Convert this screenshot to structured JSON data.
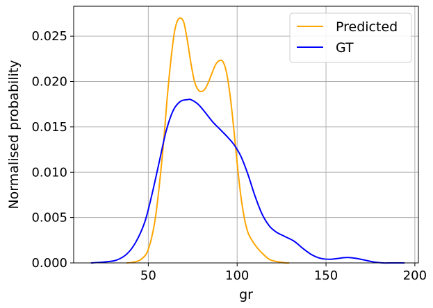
{
  "chart_data": {
    "type": "line",
    "xlabel": "gr",
    "ylabel": "Normalised probability",
    "xlim": [
      8,
      202
    ],
    "ylim": [
      0,
      0.0283
    ],
    "xticks": [
      50,
      100,
      150,
      200
    ],
    "xtick_labels": [
      "50",
      "100",
      "150",
      "200"
    ],
    "yticks": [
      0,
      0.005,
      0.01,
      0.015,
      0.02,
      0.025
    ],
    "ytick_labels": [
      "0.000",
      "0.005",
      "0.010",
      "0.015",
      "0.020",
      "0.025"
    ],
    "grid": true,
    "legend_position": "top-right",
    "series": [
      {
        "name": "Predicted",
        "color": "#FFA500",
        "x": [
          38,
          42,
          46,
          50,
          54,
          58,
          61,
          64,
          66,
          68,
          70,
          72,
          74,
          76,
          78,
          80,
          82,
          84,
          86,
          88,
          90,
          92,
          94,
          96,
          98,
          100,
          102,
          104,
          106,
          108,
          110,
          112,
          115,
          118,
          121,
          124,
          127,
          129
        ],
        "y": [
          0.0,
          0.0001,
          0.0004,
          0.0015,
          0.005,
          0.012,
          0.019,
          0.0245,
          0.0265,
          0.027,
          0.0265,
          0.0245,
          0.022,
          0.02,
          0.0191,
          0.0189,
          0.0192,
          0.02,
          0.021,
          0.0219,
          0.0223,
          0.0222,
          0.021,
          0.0185,
          0.015,
          0.011,
          0.0075,
          0.005,
          0.0034,
          0.0026,
          0.002,
          0.0015,
          0.0009,
          0.0004,
          0.0002,
          0.0001,
          0.0,
          0.0
        ]
      },
      {
        "name": "GT",
        "color": "#0000FF",
        "x": [
          18,
          25,
          32,
          38,
          43,
          48,
          52,
          56,
          60,
          64,
          68,
          72,
          74,
          78,
          82,
          86,
          90,
          94,
          98,
          102,
          106,
          110,
          114,
          118,
          122,
          127,
          132,
          137,
          142,
          147,
          152,
          157,
          162,
          167,
          172,
          177,
          182,
          187,
          194
        ],
        "y": [
          0.0,
          0.0001,
          0.0003,
          0.001,
          0.0023,
          0.0045,
          0.0075,
          0.011,
          0.0145,
          0.0168,
          0.0178,
          0.018,
          0.018,
          0.0175,
          0.0166,
          0.0156,
          0.0148,
          0.014,
          0.0131,
          0.0118,
          0.0098,
          0.0074,
          0.0054,
          0.0041,
          0.0034,
          0.0029,
          0.0024,
          0.0016,
          0.0009,
          0.0005,
          0.0004,
          0.0005,
          0.0006,
          0.0005,
          0.0003,
          0.0001,
          0.0,
          0.0,
          0.0
        ]
      }
    ]
  }
}
